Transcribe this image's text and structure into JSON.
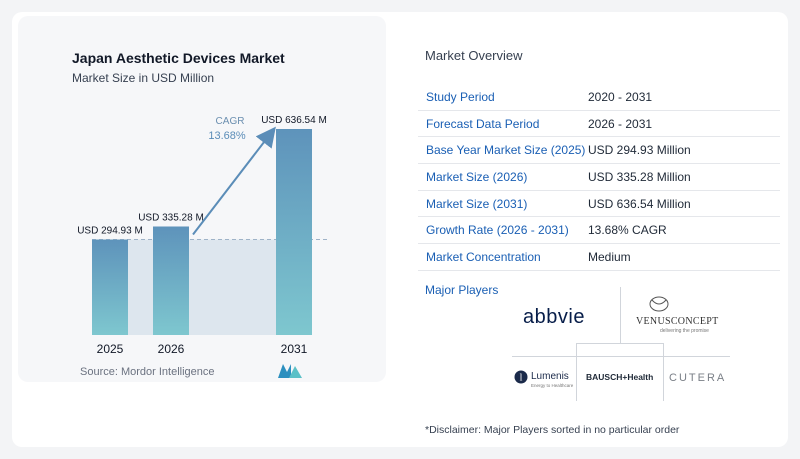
{
  "chart_data": {
    "type": "bar",
    "title": "Japan Aesthetic Devices Market",
    "subtitle": "Market Size in USD Million",
    "categories": [
      "2025",
      "2026",
      "2031"
    ],
    "values": [
      294.93,
      335.28,
      636.54
    ],
    "data_labels": [
      "USD 294.93 M",
      "USD 335.28 M",
      "USD 636.54 M"
    ],
    "annotation": {
      "label": "CAGR",
      "value": "13.68%"
    },
    "colors": {
      "bar_top": "#5e93bb",
      "bar_bottom": "#7ec7cf",
      "band": "#dde6ee",
      "arrow": "#5b8db8"
    },
    "source": "Source:  Mordor Intelligence"
  },
  "overview": {
    "title": "Market Overview",
    "rows": [
      {
        "label": "Study Period",
        "value": "2020 - 2031"
      },
      {
        "label": "Forecast Data Period",
        "value": "2026 - 2031"
      },
      {
        "label": "Base Year Market Size (2025)",
        "value": "USD 294.93 Million"
      },
      {
        "label": "Market Size (2026)",
        "value": "USD 335.28 Million"
      },
      {
        "label": "Market Size (2031)",
        "value": "USD 636.54 Million"
      },
      {
        "label": "Growth Rate (2026 - 2031)",
        "value": "13.68% CAGR"
      },
      {
        "label": "Market Concentration",
        "value": "Medium"
      }
    ]
  },
  "players": {
    "title": "Major Players",
    "logos": [
      {
        "name": "abbvie",
        "text": "abbvie"
      },
      {
        "name": "venus-concept",
        "text": "VENUSCONCEPT",
        "tagline": "delivering the promise"
      },
      {
        "name": "lumenis",
        "text": "Lumenis",
        "tagline": "Energy to Healthcare"
      },
      {
        "name": "bausch-health",
        "text": "BAUSCH+Health"
      },
      {
        "name": "cutera",
        "text": "CUTERA"
      }
    ]
  },
  "disclaimer": "*Disclaimer: Major Players sorted in no particular order"
}
